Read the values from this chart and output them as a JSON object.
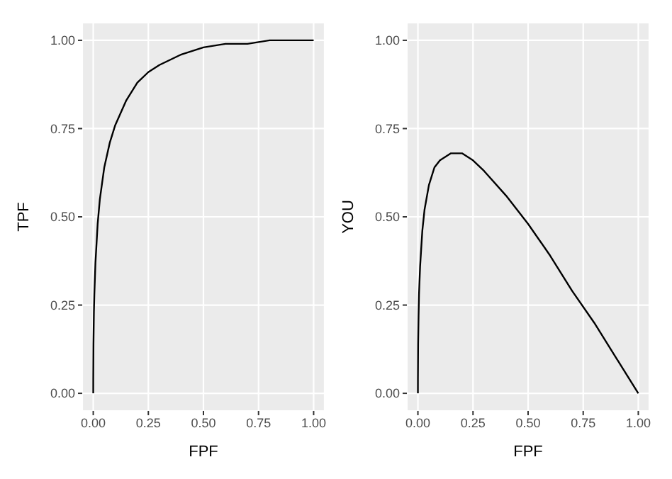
{
  "chart_data": [
    {
      "type": "line",
      "xlabel": "FPF",
      "ylabel": "TPF",
      "grid": true,
      "xlim": [
        -0.05,
        1.05
      ],
      "ylim": [
        -0.05,
        1.05
      ],
      "xticks": [
        {
          "value": 0,
          "label": "0.00"
        },
        {
          "value": 0.25,
          "label": "0.25"
        },
        {
          "value": 0.5,
          "label": "0.50"
        },
        {
          "value": 0.75,
          "label": "0.75"
        },
        {
          "value": 1,
          "label": "1.00"
        }
      ],
      "yticks": [
        {
          "value": 0,
          "label": "0.00"
        },
        {
          "value": 0.25,
          "label": "0.25"
        },
        {
          "value": 0.5,
          "label": "0.50"
        },
        {
          "value": 0.75,
          "label": "0.75"
        },
        {
          "value": 1,
          "label": "1.00"
        }
      ],
      "series": [
        {
          "color": "#000000",
          "x": [
            0,
            0.0001,
            0.001,
            0.003,
            0.005,
            0.01,
            0.02,
            0.03,
            0.05,
            0.075,
            0.1,
            0.15,
            0.2,
            0.25,
            0.3,
            0.4,
            0.5,
            0.6,
            0.7,
            0.8,
            0.9,
            1
          ],
          "values": [
            0,
            0.04,
            0.14,
            0.23,
            0.28,
            0.37,
            0.48,
            0.55,
            0.64,
            0.71,
            0.76,
            0.83,
            0.88,
            0.91,
            0.93,
            0.96,
            0.98,
            0.99,
            0.99,
            1,
            1,
            1
          ]
        }
      ]
    },
    {
      "type": "line",
      "xlabel": "FPF",
      "ylabel": "YOU",
      "grid": true,
      "xlim": [
        -0.05,
        1.05
      ],
      "ylim": [
        -0.05,
        1.05
      ],
      "xticks": [
        {
          "value": 0,
          "label": "0.00"
        },
        {
          "value": 0.25,
          "label": "0.25"
        },
        {
          "value": 0.5,
          "label": "0.50"
        },
        {
          "value": 0.75,
          "label": "0.75"
        },
        {
          "value": 1,
          "label": "1.00"
        }
      ],
      "yticks": [
        {
          "value": 0,
          "label": "0.00"
        },
        {
          "value": 0.25,
          "label": "0.25"
        },
        {
          "value": 0.5,
          "label": "0.50"
        },
        {
          "value": 0.75,
          "label": "0.75"
        },
        {
          "value": 1,
          "label": "1.00"
        }
      ],
      "series": [
        {
          "color": "#000000",
          "x": [
            0,
            0.0001,
            0.001,
            0.003,
            0.005,
            0.01,
            0.02,
            0.03,
            0.05,
            0.075,
            0.1,
            0.15,
            0.2,
            0.25,
            0.3,
            0.4,
            0.5,
            0.6,
            0.7,
            0.8,
            0.9,
            1
          ],
          "values": [
            0,
            0.04,
            0.14,
            0.22,
            0.28,
            0.36,
            0.46,
            0.52,
            0.59,
            0.64,
            0.66,
            0.68,
            0.68,
            0.66,
            0.63,
            0.56,
            0.48,
            0.39,
            0.29,
            0.2,
            0.1,
            0
          ]
        }
      ]
    }
  ]
}
